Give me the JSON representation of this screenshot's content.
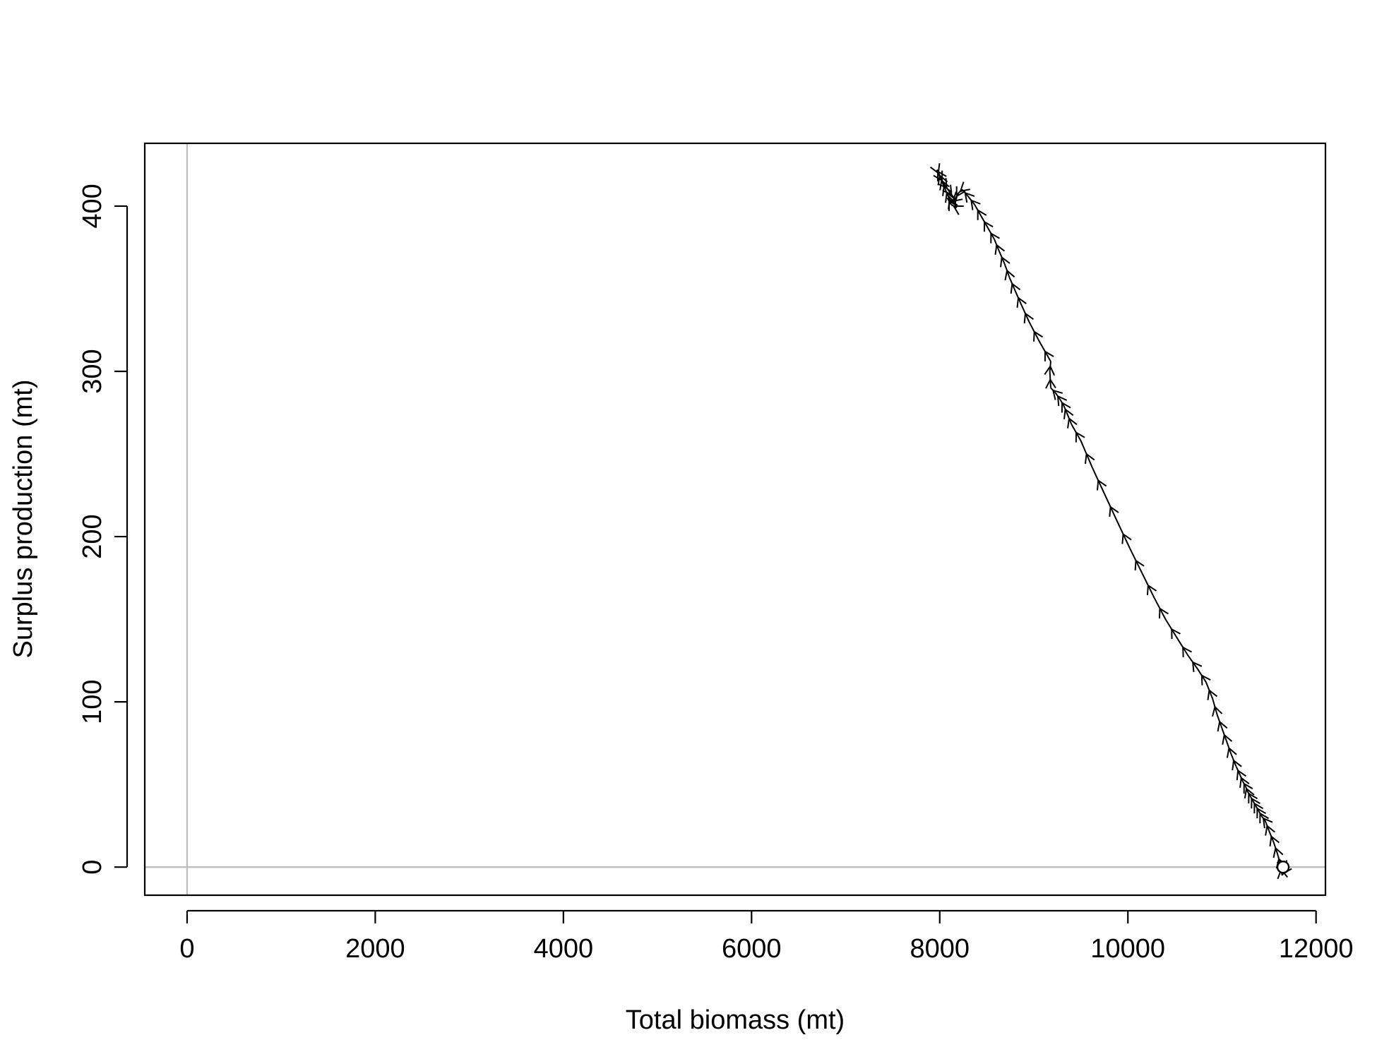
{
  "chart_data": {
    "type": "line",
    "title": "",
    "xlabel": "Total biomass (mt)",
    "ylabel": "Surplus production (mt)",
    "xlim": [
      -450,
      12100
    ],
    "ylim": [
      -17,
      438
    ],
    "x_ticks": [
      0,
      2000,
      4000,
      6000,
      8000,
      10000,
      12000
    ],
    "y_ticks": [
      0,
      100,
      200,
      300,
      400
    ],
    "x_tick_labels": [
      "0",
      "2000",
      "4000",
      "6000",
      "8000",
      "10000",
      "12000"
    ],
    "y_tick_labels": [
      "0",
      "100",
      "200",
      "300",
      "400"
    ],
    "reference_lines": {
      "x": 0,
      "y": 0,
      "color": "#bebebe"
    },
    "grid": false,
    "line_color": "#000000",
    "start_marker": "open circle",
    "series": [
      {
        "x": [
          11650,
          11660,
          11640,
          11620,
          11590,
          11550,
          11500,
          11460,
          11420,
          11390,
          11360,
          11330,
          11300,
          11270,
          11250,
          11220,
          11190,
          11150,
          11100,
          11050,
          11000,
          10950,
          10900,
          10830,
          10740,
          10640,
          10530,
          10400,
          10280,
          10150,
          10020,
          9880,
          9750,
          9620,
          9500,
          9400,
          9350,
          9320,
          9280,
          9230,
          9180,
          9170,
          9180,
          9060,
          8950,
          8870,
          8800,
          8740,
          8690,
          8630,
          8580,
          8510,
          8440,
          8370,
          8300,
          8240,
          8200,
          8160,
          8120,
          8090,
          8060,
          8030,
          8010,
          7990,
          7970,
          8000,
          8050,
          8100,
          8150,
          8180,
          8120,
          8080
        ],
        "y": [
          0,
          -3,
          -5,
          2,
          8,
          15,
          22,
          28,
          31,
          34,
          37,
          40,
          43,
          46,
          49,
          52,
          56,
          61,
          68,
          76,
          84,
          92,
          102,
          112,
          120,
          128,
          138,
          150,
          163,
          178,
          193,
          210,
          226,
          242,
          258,
          268,
          275,
          279,
          283,
          287,
          290,
          300,
          306,
          318,
          330,
          340,
          349,
          357,
          365,
          373,
          380,
          387,
          394,
          401,
          406,
          410,
          408,
          404,
          402,
          406,
          410,
          414,
          417,
          420,
          422,
          418,
          413,
          409,
          405,
          399,
          401,
          405
        ]
      }
    ]
  }
}
